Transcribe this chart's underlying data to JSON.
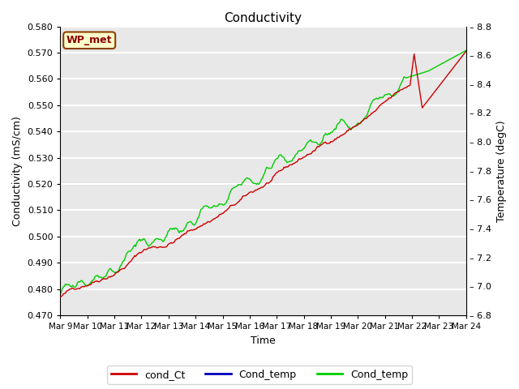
{
  "title": "Conductivity",
  "xlabel": "Time",
  "ylabel_left": "Conductivity (mS/cm)",
  "ylabel_right": "Temperature (degC)",
  "station_label": "WP_met",
  "x_tick_labels": [
    "Mar 9",
    "Mar 10",
    "Mar 11",
    "Mar 12",
    "Mar 13",
    "Mar 14",
    "Mar 15",
    "Mar 16",
    "Mar 17",
    "Mar 18",
    "Mar 19",
    "Mar 20",
    "Mar 21",
    "Mar 22",
    "Mar 23",
    "Mar 24"
  ],
  "ylim_left": [
    0.47,
    0.58
  ],
  "ylim_right": [
    6.8,
    8.8
  ],
  "yticks_left": [
    0.47,
    0.48,
    0.49,
    0.5,
    0.51,
    0.52,
    0.53,
    0.54,
    0.55,
    0.56,
    0.57,
    0.58
  ],
  "yticks_right": [
    6.8,
    7.0,
    7.2,
    7.4,
    7.6,
    7.8,
    8.0,
    8.2,
    8.4,
    8.6,
    8.8
  ],
  "bg_color": "#e8e8e8",
  "legend_entries": [
    "cond_Ct",
    "Cond_temp",
    "Cond_temp"
  ],
  "legend_colors": [
    "#cc0000",
    "#0000bb",
    "#00cc00"
  ],
  "line_colors": {
    "cond_Ct": "#cc0000",
    "cond_temp_green": "#00cc00"
  },
  "n_points": 400
}
